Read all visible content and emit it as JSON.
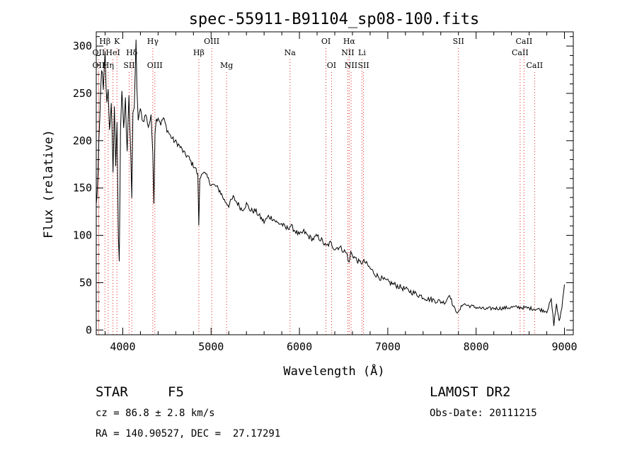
{
  "chart_data": {
    "type": "line",
    "title": "spec-55911-B91104_sp08-100.fits",
    "xlabel": "Wavelength (Å)",
    "ylabel": "Flux (relative)",
    "xlim": [
      3700,
      9100
    ],
    "ylim": [
      -5,
      315
    ],
    "xticks": [
      4000,
      5000,
      6000,
      7000,
      8000,
      9000
    ],
    "yticks": [
      0,
      50,
      100,
      150,
      200,
      250,
      300
    ],
    "grid": false,
    "series": [
      {
        "name": "",
        "color": "#000000",
        "x": [
          3700,
          3720,
          3740,
          3760,
          3780,
          3800,
          3820,
          3835,
          3850,
          3870,
          3890,
          3905,
          3920,
          3935,
          3950,
          3960,
          3968,
          3975,
          3990,
          4010,
          4030,
          4050,
          4070,
          4090,
          4102,
          4115,
          4130,
          4150,
          4160,
          4175,
          4200,
          4230,
          4260,
          4290,
          4320,
          4340,
          4352,
          4365,
          4380,
          4400,
          4430,
          4460,
          4500,
          4540,
          4580,
          4620,
          4660,
          4700,
          4740,
          4780,
          4820,
          4850,
          4861,
          4872,
          4900,
          4950,
          5000,
          5050,
          5100,
          5150,
          5200,
          5250,
          5300,
          5350,
          5400,
          5450,
          5500,
          5550,
          5600,
          5650,
          5700,
          5750,
          5800,
          5850,
          5900,
          5950,
          6000,
          6050,
          6100,
          6150,
          6200,
          6250,
          6300,
          6350,
          6400,
          6450,
          6500,
          6540,
          6563,
          6580,
          6620,
          6680,
          6740,
          6800,
          6870,
          6950,
          7050,
          7150,
          7250,
          7350,
          7450,
          7550,
          7650,
          7700,
          7740,
          7760,
          7800,
          7850,
          7900,
          7950,
          8000,
          8100,
          8200,
          8300,
          8400,
          8500,
          8600,
          8700,
          8800,
          8850,
          8880,
          8910,
          8940,
          8970,
          9000
        ],
        "values": [
          130,
          165,
          220,
          280,
          250,
          290,
          235,
          260,
          210,
          245,
          160,
          230,
          180,
          220,
          95,
          75,
          150,
          215,
          245,
          215,
          240,
          195,
          250,
          180,
          140,
          225,
          240,
          300,
          250,
          225,
          232,
          220,
          228,
          215,
          225,
          190,
          135,
          210,
          222,
          225,
          218,
          224,
          212,
          205,
          200,
          197,
          192,
          186,
          183,
          176,
          172,
          163,
          112,
          158,
          168,
          162,
          154,
          152,
          147,
          137,
          132,
          140,
          134,
          127,
          133,
          126,
          126,
          120,
          114,
          120,
          118,
          113,
          112,
          107,
          110,
          105,
          100,
          104,
          99,
          96,
          99,
          95,
          88,
          92,
          86,
          88,
          84,
          80,
          70,
          82,
          77,
          71,
          72,
          65,
          58,
          53,
          49,
          45,
          41,
          37,
          33,
          31,
          29,
          38,
          25,
          22,
          18,
          28,
          26,
          25,
          24,
          22,
          23,
          23,
          24,
          24,
          23,
          22,
          20,
          32,
          6,
          28,
          8,
          24,
          48
        ]
      }
    ],
    "line_markers": [
      {
        "label": "Hβ",
        "wavelength": 3798,
        "row": 1
      },
      {
        "label": "K",
        "wavelength": 3934,
        "row": 1
      },
      {
        "label": "OII",
        "wavelength": 3727,
        "row": 2
      },
      {
        "label": "HeI",
        "wavelength": 3889,
        "row": 2
      },
      {
        "label": "Hδ",
        "wavelength": 4102,
        "row": 2
      },
      {
        "label": "OII",
        "wavelength": 3727,
        "row": 3
      },
      {
        "label": "Hη",
        "wavelength": 3835,
        "row": 3
      },
      {
        "label": "SII",
        "wavelength": 4072,
        "row": 3
      },
      {
        "label": "Hγ",
        "wavelength": 4340,
        "row": 1
      },
      {
        "label": "OIII",
        "wavelength": 4363,
        "row": 3
      },
      {
        "label": "Hβ",
        "wavelength": 4861,
        "row": 2
      },
      {
        "label": "OIII",
        "wavelength": 5007,
        "row": 1
      },
      {
        "label": "Mg",
        "wavelength": 5175,
        "row": 3
      },
      {
        "label": "Na",
        "wavelength": 5893,
        "row": 2
      },
      {
        "label": "OI",
        "wavelength": 6300,
        "row": 1
      },
      {
        "label": "OI",
        "wavelength": 6363,
        "row": 3
      },
      {
        "label": "Hα",
        "wavelength": 6563,
        "row": 1
      },
      {
        "label": "NII",
        "wavelength": 6548,
        "row": 2
      },
      {
        "label": "Li",
        "wavelength": 6708,
        "row": 2
      },
      {
        "label": "NII",
        "wavelength": 6584,
        "row": 3
      },
      {
        "label": "SII",
        "wavelength": 6725,
        "row": 3
      },
      {
        "label": "SII",
        "wavelength": 7800,
        "row": 1
      },
      {
        "label": "CaII",
        "wavelength": 8542,
        "row": 1
      },
      {
        "label": "CaII",
        "wavelength": 8498,
        "row": 2
      },
      {
        "label": "CaII",
        "wavelength": 8662,
        "row": 3
      }
    ]
  },
  "info": {
    "object_type": "STAR",
    "subclass": "F5",
    "survey": "LAMOST DR2",
    "redshift": "cz = 86.8 ± 2.8 km/s",
    "obs_date": "Obs-Date: 20111215",
    "coordinates": "RA = 140.90527, DEC =  27.17291"
  }
}
